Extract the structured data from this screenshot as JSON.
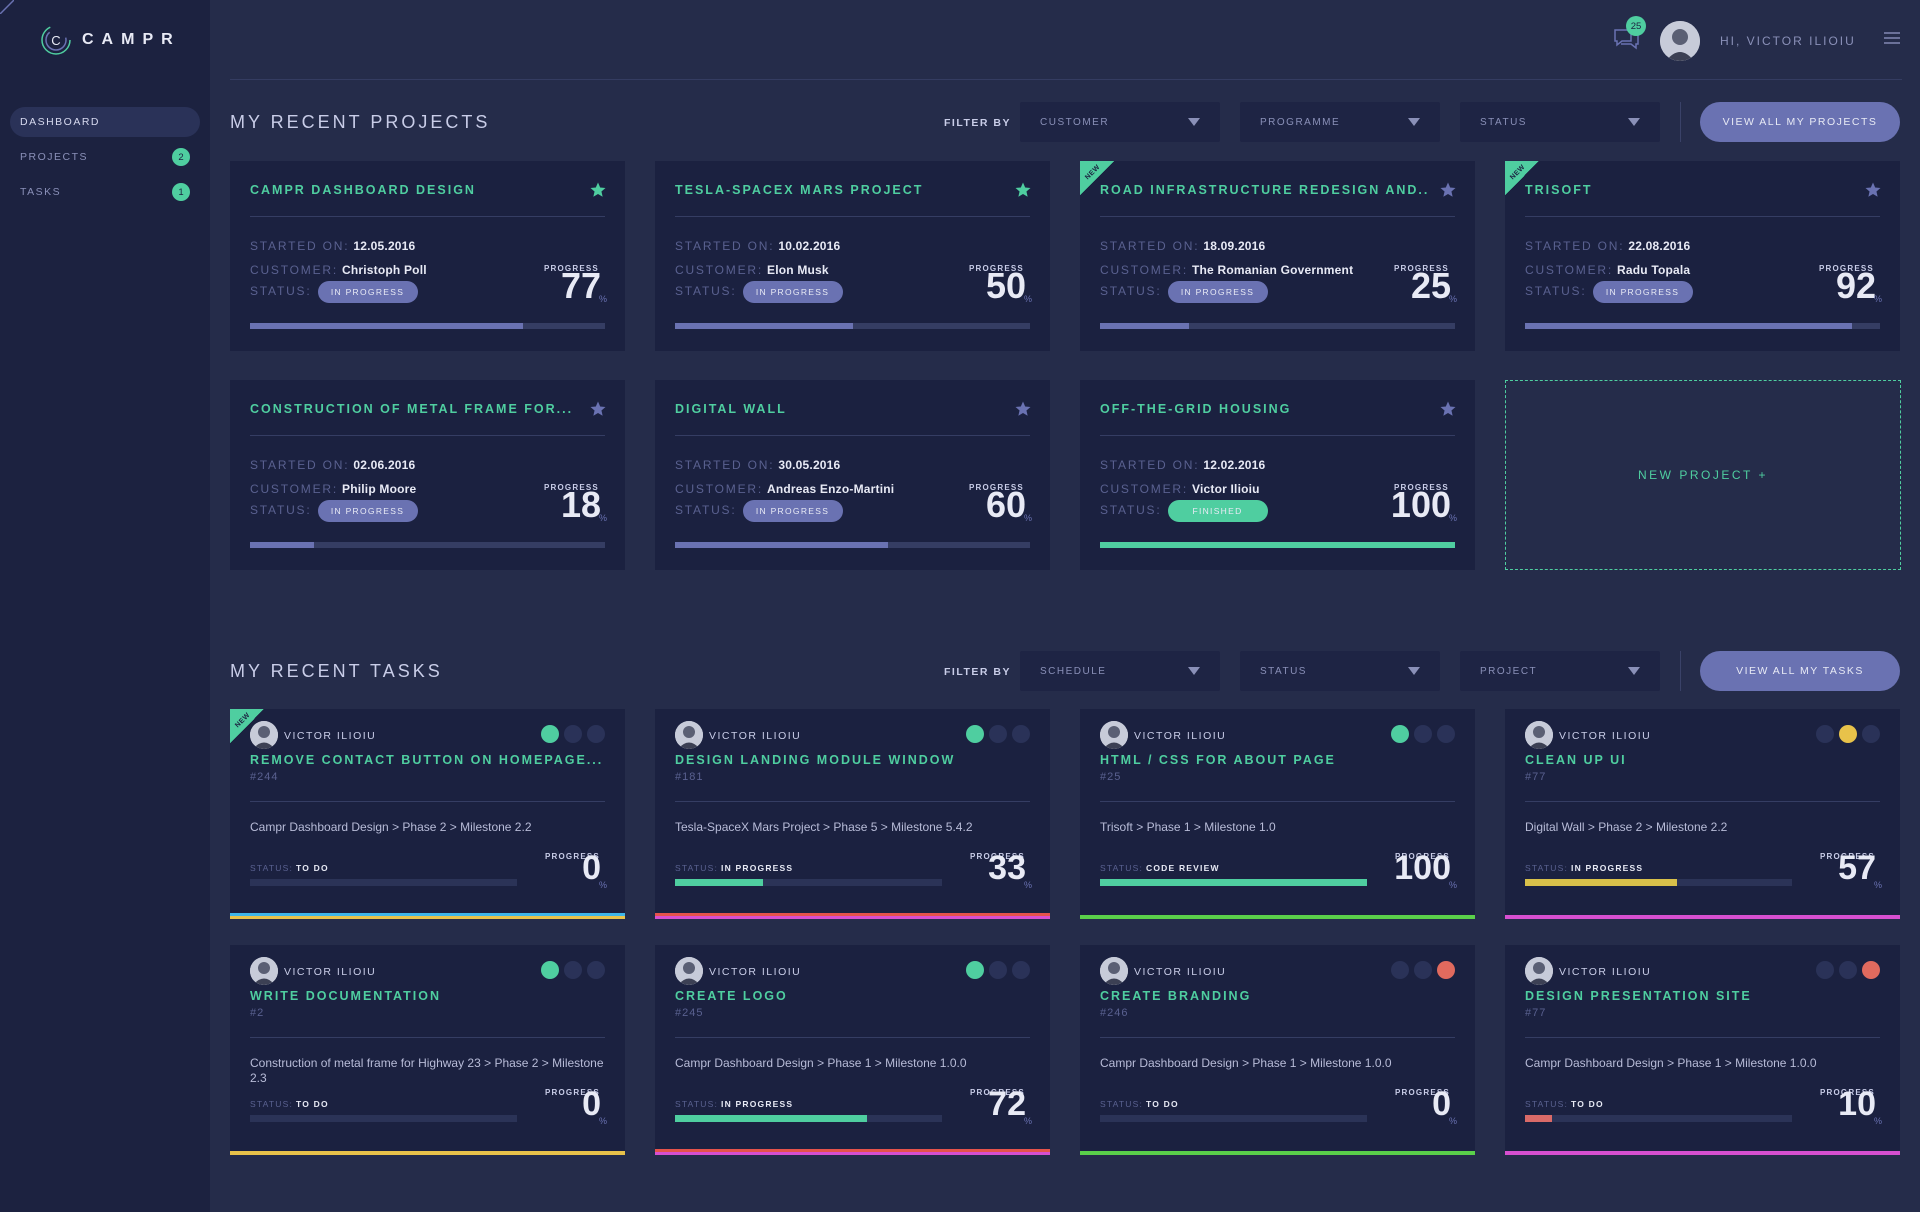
{
  "app": {
    "name": "CAMPR"
  },
  "sidebar": {
    "items": [
      {
        "label": "DASHBOARD",
        "badge": ""
      },
      {
        "label": "PROJECTS",
        "badge": "2"
      },
      {
        "label": "TASKS",
        "badge": "1"
      }
    ]
  },
  "header": {
    "notifications": "25",
    "greeting": "HI, VICTOR ILIOIU"
  },
  "projects_section": {
    "title": "MY RECENT PROJECTS",
    "filter_label": "FILTER BY",
    "filters": [
      "CUSTOMER",
      "PROGRAMME",
      "STATUS"
    ],
    "view_all": "VIEW ALL MY PROJECTS",
    "new_project": "NEW PROJECT +",
    "labels": {
      "started": "STARTED ON:",
      "customer": "CUSTOMER:",
      "status": "STATUS:",
      "progress": "PROGRESS",
      "pct": "%",
      "new": "NEW"
    },
    "cards": [
      {
        "title": "CAMPR DASHBOARD DESIGN",
        "started": "12.05.2016",
        "customer": "Christoph Poll",
        "status": "IN PROGRESS",
        "progress": 77,
        "is_new": false,
        "starred": true
      },
      {
        "title": "TESLA-SPACEX MARS PROJECT",
        "started": "10.02.2016",
        "customer": "Elon Musk",
        "status": "IN PROGRESS",
        "progress": 50,
        "is_new": false,
        "starred": true
      },
      {
        "title": "ROAD INFRASTRUCTURE REDESIGN AND...",
        "started": "18.09.2016",
        "customer": "The Romanian Government",
        "status": "IN PROGRESS",
        "progress": 25,
        "is_new": true,
        "starred": false
      },
      {
        "title": "TRISOFT",
        "started": "22.08.2016",
        "customer": "Radu Topala",
        "status": "IN PROGRESS",
        "progress": 92,
        "is_new": true,
        "starred": false
      },
      {
        "title": "CONSTRUCTION OF METAL FRAME FOR...",
        "started": "02.06.2016",
        "customer": "Philip Moore",
        "status": "IN PROGRESS",
        "progress": 18,
        "is_new": false,
        "starred": false
      },
      {
        "title": "DIGITAL WALL",
        "started": "30.05.2016",
        "customer": "Andreas Enzo-Martini",
        "status": "IN PROGRESS",
        "progress": 60,
        "is_new": false,
        "starred": false
      },
      {
        "title": "OFF-THE-GRID HOUSING",
        "started": "12.02.2016",
        "customer": "Victor Ilioiu",
        "status": "FINISHED",
        "progress": 100,
        "is_new": false,
        "starred": false
      }
    ]
  },
  "tasks_section": {
    "title": "MY RECENT TASKS",
    "filter_label": "FILTER BY",
    "filters": [
      "SCHEDULE",
      "STATUS",
      "PROJECT"
    ],
    "view_all": "VIEW ALL MY TASKS",
    "labels": {
      "status": "STATUS:",
      "progress": "PROGRESS",
      "pct": "%",
      "new": "NEW"
    },
    "cards": [
      {
        "owner": "VICTOR ILIOIU",
        "title": "REMOVE CONTACT BUTTON ON HOMEPAGE...",
        "id": "#244",
        "path": "Campr Dashboard Design > Phase 2 > Milestone 2.2",
        "status": "TO DO",
        "progress": 0,
        "bar_color": "#6a72b2",
        "stripe": [
          "#3fb6e8",
          "#e8c24a"
        ],
        "dots": [
          "#4fcea0",
          "#2a3258",
          "#2a3258"
        ],
        "is_new": true
      },
      {
        "owner": "VICTOR ILIOIU",
        "title": "DESIGN LANDING MODULE WINDOW",
        "id": "#181",
        "path": "Tesla-SpaceX Mars Project > Phase 5 > Milestone 5.4.2",
        "status": "IN PROGRESS",
        "progress": 33,
        "bar_color": "#4fcea0",
        "stripe": [
          "#e5534b",
          "#d64fd0"
        ],
        "dots": [
          "#4fcea0",
          "#2a3258",
          "#2a3258"
        ],
        "is_new": false
      },
      {
        "owner": "VICTOR ILIOIU",
        "title": "HTML / CSS FOR ABOUT PAGE",
        "id": "#25",
        "path": "Trisoft > Phase 1 > Milestone 1.0",
        "status": "CODE REVIEW",
        "progress": 100,
        "bar_color": "#4fcea0",
        "stripe": [
          "#5ad04a"
        ],
        "dots": [
          "#4fcea0",
          "#2a3258",
          "#2a3258"
        ],
        "is_new": false
      },
      {
        "owner": "VICTOR ILIOIU",
        "title": "CLEAN UP UI",
        "id": "#77",
        "path": "Digital Wall > Phase 2 > Milestone 2.2",
        "status": "IN PROGRESS",
        "progress": 57,
        "bar_color": "#d8c04a",
        "stripe": [
          "#d64fd0"
        ],
        "dots": [
          "#2a3258",
          "#e8c24a",
          "#2a3258"
        ],
        "is_new": false
      },
      {
        "owner": "VICTOR ILIOIU",
        "title": "WRITE DOCUMENTATION",
        "id": "#2",
        "path": "Construction of metal frame for Highway 23 > Phase 2 > Milestone 2.3",
        "status": "TO DO",
        "progress": 0,
        "bar_color": "#6a72b2",
        "stripe": [
          "#e8c24a"
        ],
        "dots": [
          "#4fcea0",
          "#2a3258",
          "#2a3258"
        ],
        "is_new": false
      },
      {
        "owner": "VICTOR ILIOIU",
        "title": "CREATE LOGO",
        "id": "#245",
        "path": "Campr Dashboard Design > Phase 1 > Milestone 1.0.0",
        "status": "IN PROGRESS",
        "progress": 72,
        "bar_color": "#4fcea0",
        "stripe": [
          "#e5534b",
          "#d64fd0"
        ],
        "dots": [
          "#4fcea0",
          "#2a3258",
          "#2a3258"
        ],
        "is_new": false
      },
      {
        "owner": "VICTOR ILIOIU",
        "title": "CREATE BRANDING",
        "id": "#246",
        "path": "Campr Dashboard Design > Phase 1 > Milestone 1.0.0",
        "status": "TO DO",
        "progress": 0,
        "bar_color": "#d96a68",
        "stripe": [
          "#5ad04a"
        ],
        "dots": [
          "#2a3258",
          "#2a3258",
          "#e06a5e"
        ],
        "is_new": false
      },
      {
        "owner": "VICTOR ILIOIU",
        "title": "DESIGN PRESENTATION SITE",
        "id": "#77",
        "path": "Campr Dashboard Design > Phase 1 > Milestone 1.0.0",
        "status": "TO DO",
        "progress": 10,
        "bar_color": "#d96a68",
        "stripe": [
          "#d64fd0"
        ],
        "dots": [
          "#2a3258",
          "#2a3258",
          "#e06a5e"
        ],
        "is_new": false
      }
    ]
  },
  "colors": {
    "accent": "#4fcea0",
    "primary": "#6a72b2",
    "card": "#1b2140",
    "background": "#252c4a"
  }
}
